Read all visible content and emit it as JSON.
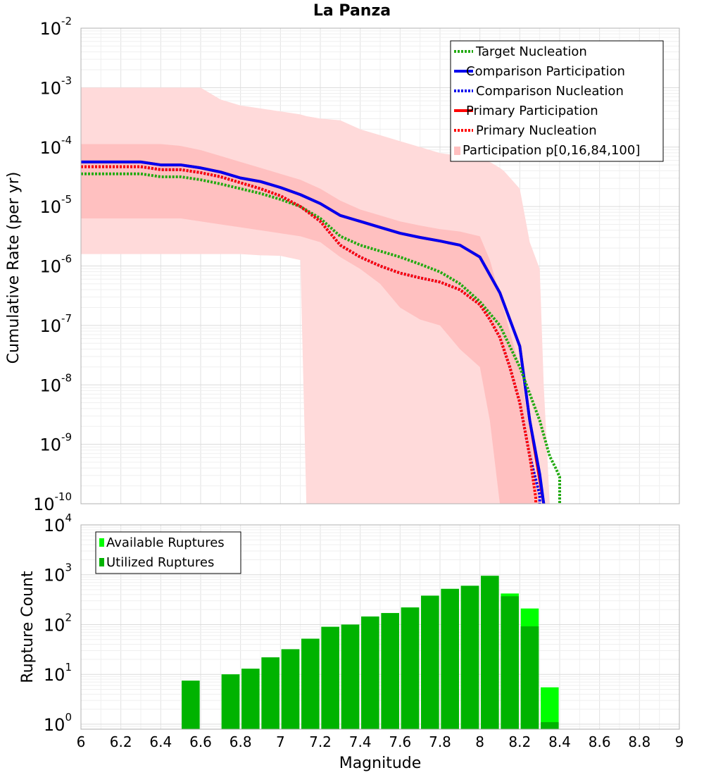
{
  "chart_data": [
    {
      "type": "line",
      "title": "La Panza",
      "xlabel": "",
      "ylabel": "Cumulative Rate (per yr)",
      "xlim": [
        6,
        9
      ],
      "ylim_exp": [
        -10,
        -2
      ],
      "y_scale": "log",
      "y_ticks": [
        {
          "base": "10",
          "exp": "-2"
        },
        {
          "base": "10",
          "exp": "-3"
        },
        {
          "base": "10",
          "exp": "-4"
        },
        {
          "base": "10",
          "exp": "-5"
        },
        {
          "base": "10",
          "exp": "-6"
        },
        {
          "base": "10",
          "exp": "-7"
        },
        {
          "base": "10",
          "exp": "-8"
        },
        {
          "base": "10",
          "exp": "-9"
        },
        {
          "base": "10",
          "exp": "-10"
        }
      ],
      "legend_position": "top-right",
      "legend": [
        {
          "label": "Target Nucleation",
          "color": "#22aa11",
          "style": "dotted"
        },
        {
          "label": "Comparison Participation",
          "color": "#0000ee",
          "style": "solid"
        },
        {
          "label": "Comparison Nucleation",
          "color": "#0000ee",
          "style": "dotted"
        },
        {
          "label": "Primary Participation",
          "color": "#ff0000",
          "style": "solid"
        },
        {
          "label": "Primary Nucleation",
          "color": "#ff0000",
          "style": "dotted"
        },
        {
          "label": "Participation p[0,16,84,100]",
          "color": "#ffc0c0",
          "style": "band"
        }
      ],
      "bands": [
        {
          "name": "Participation p[0,100]",
          "color": "#ffdada",
          "x": [
            6.0,
            6.2,
            6.4,
            6.5,
            6.6,
            6.7,
            6.8,
            6.9,
            7.0,
            7.1,
            7.1,
            7.13,
            7.2,
            7.3,
            7.4,
            7.5,
            7.6,
            7.7,
            7.8,
            7.9,
            8.0,
            8.05,
            8.1,
            8.12,
            8.2,
            8.25,
            8.3,
            8.32,
            8.35
          ],
          "upper_log": [
            -3.0,
            -3.0,
            -3.0,
            -3.0,
            -3.0,
            -3.2,
            -3.3,
            -3.35,
            -3.4,
            -3.45,
            -3.45,
            -3.48,
            -3.52,
            -3.55,
            -3.7,
            -3.8,
            -3.9,
            -4.0,
            -4.1,
            -4.15,
            -4.2,
            -4.25,
            -4.35,
            -4.4,
            -4.7,
            -5.6,
            -6.05,
            -8.0,
            -10.0
          ],
          "lower_log": [
            -5.8,
            -5.8,
            -5.8,
            -5.8,
            -5.8,
            -5.8,
            -5.8,
            -5.82,
            -5.83,
            -5.9,
            -5.9,
            -10.0,
            -10.0,
            -10.0,
            -10.0,
            -10.0,
            -10.0,
            -10.0,
            -10.0,
            -10.0,
            -10.0,
            -10.0,
            -10.0,
            -10.0,
            -10.0,
            -10.0,
            -10.0,
            -10.0,
            -10.0
          ]
        },
        {
          "name": "Participation p[16,84]",
          "color": "#ffc0c0",
          "x": [
            6.0,
            6.2,
            6.4,
            6.5,
            6.6,
            6.7,
            6.8,
            6.9,
            7.0,
            7.1,
            7.2,
            7.3,
            7.4,
            7.5,
            7.6,
            7.7,
            7.8,
            7.9,
            8.0,
            8.05,
            8.1,
            8.15,
            8.2,
            8.25,
            8.3
          ],
          "upper_log": [
            -3.95,
            -3.95,
            -3.95,
            -3.98,
            -4.05,
            -4.15,
            -4.25,
            -4.35,
            -4.45,
            -4.55,
            -4.7,
            -4.9,
            -5.05,
            -5.15,
            -5.25,
            -5.32,
            -5.38,
            -5.42,
            -5.5,
            -5.9,
            -6.5,
            -7.1,
            -7.7,
            -8.8,
            -10.0
          ],
          "lower_log": [
            -5.2,
            -5.2,
            -5.2,
            -5.2,
            -5.25,
            -5.3,
            -5.35,
            -5.4,
            -5.45,
            -5.5,
            -5.6,
            -5.85,
            -6.05,
            -6.3,
            -6.7,
            -6.9,
            -7.0,
            -7.4,
            -7.7,
            -8.6,
            -10.0,
            -10.0,
            -10.0,
            -10.0,
            -10.0
          ]
        }
      ],
      "series": [
        {
          "name": "Target Nucleation",
          "color": "#22aa11",
          "style": "dotted",
          "x": [
            6.0,
            6.3,
            6.4,
            6.5,
            6.6,
            6.7,
            6.8,
            6.9,
            7.0,
            7.1,
            7.2,
            7.3,
            7.4,
            7.5,
            7.6,
            7.7,
            7.8,
            7.9,
            8.0,
            8.1,
            8.2,
            8.3,
            8.35,
            8.38,
            8.4,
            8.4
          ],
          "y_log": [
            -4.45,
            -4.45,
            -4.5,
            -4.5,
            -4.55,
            -4.62,
            -4.7,
            -4.78,
            -4.88,
            -5.0,
            -5.2,
            -5.5,
            -5.65,
            -5.75,
            -5.85,
            -5.97,
            -6.1,
            -6.3,
            -6.6,
            -7.0,
            -7.7,
            -8.6,
            -9.2,
            -9.4,
            -9.55,
            -10.0
          ]
        },
        {
          "name": "Comparison Participation",
          "color": "#0000ee",
          "style": "solid",
          "x": [
            6.0,
            6.3,
            6.4,
            6.5,
            6.6,
            6.7,
            6.8,
            6.9,
            7.0,
            7.1,
            7.2,
            7.3,
            7.4,
            7.5,
            7.6,
            7.7,
            7.8,
            7.9,
            8.0,
            8.1,
            8.2,
            8.25,
            8.3,
            8.32
          ],
          "y_log": [
            -4.25,
            -4.25,
            -4.3,
            -4.3,
            -4.35,
            -4.42,
            -4.52,
            -4.58,
            -4.68,
            -4.8,
            -4.95,
            -5.15,
            -5.25,
            -5.35,
            -5.45,
            -5.52,
            -5.58,
            -5.65,
            -5.85,
            -6.45,
            -7.35,
            -8.6,
            -9.5,
            -10.0
          ]
        },
        {
          "name": "Comparison Nucleation",
          "color": "#0000ee",
          "style": "dotted",
          "x": [
            6.0,
            6.3,
            6.4,
            6.5,
            6.6,
            6.7,
            6.8,
            6.9,
            7.0,
            7.1,
            7.2,
            7.3,
            7.4,
            7.5,
            7.6,
            7.7,
            7.8,
            7.9,
            8.0,
            8.05,
            8.1,
            8.15,
            8.2,
            8.25,
            8.3,
            8.3
          ],
          "y_log": [
            -4.33,
            -4.33,
            -4.38,
            -4.38,
            -4.43,
            -4.5,
            -4.6,
            -4.7,
            -4.82,
            -5.0,
            -5.25,
            -5.65,
            -5.85,
            -6.0,
            -6.12,
            -6.2,
            -6.27,
            -6.4,
            -6.65,
            -6.9,
            -7.2,
            -7.7,
            -8.3,
            -9.2,
            -9.85,
            -10.0
          ]
        },
        {
          "name": "Primary Participation",
          "color": "#ff0000",
          "style": "solid",
          "x": [
            6.0,
            6.3,
            6.4,
            6.5,
            6.6,
            6.7,
            6.8,
            6.9,
            7.0,
            7.1,
            7.2,
            7.3,
            7.4,
            7.5,
            7.6,
            7.7,
            7.8,
            7.9,
            8.0,
            8.1,
            8.2,
            8.25,
            8.3,
            8.32
          ],
          "y_log": [
            -4.25,
            -4.25,
            -4.3,
            -4.3,
            -4.35,
            -4.42,
            -4.52,
            -4.58,
            -4.68,
            -4.8,
            -4.95,
            -5.15,
            -5.25,
            -5.35,
            -5.45,
            -5.52,
            -5.58,
            -5.65,
            -5.85,
            -6.45,
            -7.35,
            -8.6,
            -9.6,
            -10.0
          ]
        },
        {
          "name": "Primary Nucleation",
          "color": "#ff0000",
          "style": "dotted",
          "x": [
            6.0,
            6.3,
            6.4,
            6.5,
            6.6,
            6.7,
            6.8,
            6.9,
            7.0,
            7.1,
            7.2,
            7.3,
            7.4,
            7.5,
            7.6,
            7.7,
            7.8,
            7.9,
            8.0,
            8.05,
            8.1,
            8.15,
            8.2,
            8.25,
            8.28,
            8.28
          ],
          "y_log": [
            -4.33,
            -4.33,
            -4.38,
            -4.38,
            -4.43,
            -4.5,
            -4.6,
            -4.7,
            -4.82,
            -5.0,
            -5.25,
            -5.65,
            -5.85,
            -6.0,
            -6.12,
            -6.2,
            -6.27,
            -6.4,
            -6.65,
            -6.9,
            -7.2,
            -7.7,
            -8.3,
            -9.2,
            -9.9,
            -10.0
          ]
        }
      ]
    },
    {
      "type": "bar",
      "title": "",
      "xlabel": "Magnitude",
      "ylabel": "Rupture Count",
      "xlim": [
        6,
        9
      ],
      "ylim_exp": [
        -0.1,
        4
      ],
      "y_scale": "log",
      "y_ticks": [
        {
          "base": "10",
          "exp": "4"
        },
        {
          "base": "10",
          "exp": "3"
        },
        {
          "base": "10",
          "exp": "2"
        },
        {
          "base": "10",
          "exp": "1"
        },
        {
          "base": "10",
          "exp": "0"
        }
      ],
      "x_ticks": [
        "6",
        "6.2",
        "6.4",
        "6.6",
        "6.8",
        "7",
        "7.2",
        "7.4",
        "7.6",
        "7.8",
        "8",
        "8.2",
        "8.4",
        "8.6",
        "8.8",
        "9"
      ],
      "bar_width": 0.09,
      "legend_position": "top-left",
      "legend": [
        {
          "label": "Available Ruptures",
          "color": "#00ff00"
        },
        {
          "label": "Utilized Ruptures",
          "color": "#00b300"
        }
      ],
      "series": [
        {
          "name": "Available Ruptures",
          "color": "#00ff00",
          "x": [
            6.55,
            6.75,
            6.85,
            6.95,
            7.05,
            7.15,
            7.25,
            7.35,
            7.45,
            7.55,
            7.65,
            7.75,
            7.85,
            7.95,
            8.05,
            8.15,
            8.25,
            8.35
          ],
          "values": [
            7.5,
            10,
            13,
            22,
            32,
            52,
            90,
            100,
            145,
            170,
            220,
            380,
            520,
            600,
            950,
            420,
            210,
            5.5
          ]
        },
        {
          "name": "Utilized Ruptures",
          "color": "#00b300",
          "x": [
            6.55,
            6.75,
            6.85,
            6.95,
            7.05,
            7.15,
            7.25,
            7.35,
            7.45,
            7.55,
            7.65,
            7.75,
            7.85,
            7.95,
            8.05,
            8.15,
            8.25,
            8.35
          ],
          "values": [
            7.5,
            10,
            13,
            22,
            32,
            52,
            90,
            100,
            145,
            170,
            220,
            380,
            520,
            600,
            950,
            370,
            92,
            1.1
          ]
        }
      ]
    }
  ]
}
